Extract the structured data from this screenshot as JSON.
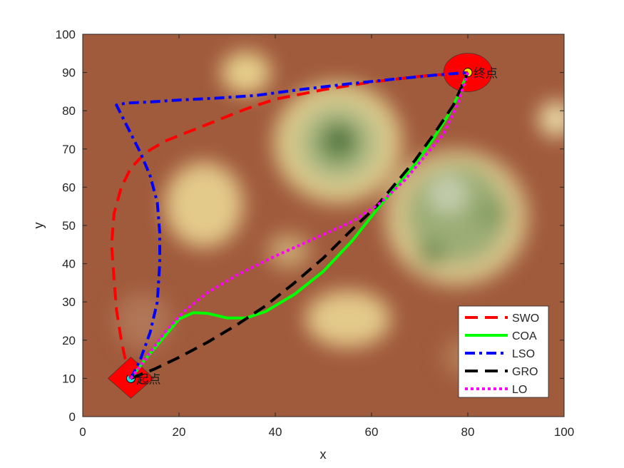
{
  "chart_data": {
    "type": "line",
    "title": "",
    "xlabel": "x",
    "ylabel": "y",
    "xlim": [
      0,
      100
    ],
    "ylim": [
      0,
      100
    ],
    "xticks": [
      0,
      20,
      40,
      60,
      80,
      100
    ],
    "yticks": [
      0,
      10,
      20,
      30,
      40,
      50,
      60,
      70,
      80,
      90,
      100
    ],
    "xtick_labels": [
      "0",
      "20",
      "40",
      "60",
      "80",
      "100"
    ],
    "ytick_labels": [
      "0",
      "10",
      "20",
      "30",
      "40",
      "50",
      "60",
      "70",
      "80",
      "90",
      "100"
    ],
    "grid": false,
    "legend_position": "bottom-right",
    "background": "terrain elevation map (brown lowlands, yellow/green peaks)",
    "start": {
      "x": 10,
      "y": 10,
      "label": "起点"
    },
    "goal": {
      "x": 80,
      "y": 90,
      "label": "终点"
    },
    "series": [
      {
        "name": "SWO",
        "color": "#ff0000",
        "style": "dashed",
        "points": [
          [
            10,
            10
          ],
          [
            9,
            14
          ],
          [
            8,
            20
          ],
          [
            7,
            28
          ],
          [
            6.5,
            36
          ],
          [
            6,
            45
          ],
          [
            6.5,
            53
          ],
          [
            8,
            60
          ],
          [
            10,
            65
          ],
          [
            13,
            69
          ],
          [
            17,
            72
          ],
          [
            22,
            74.5
          ],
          [
            28,
            77.5
          ],
          [
            34,
            80.5
          ],
          [
            40,
            83
          ],
          [
            50,
            85.5
          ],
          [
            60,
            87.5
          ],
          [
            70,
            89
          ],
          [
            80,
            90
          ]
        ]
      },
      {
        "name": "COA",
        "color": "#00ff00",
        "style": "solid",
        "points": [
          [
            10,
            10
          ],
          [
            13,
            15
          ],
          [
            17,
            21
          ],
          [
            20,
            25.5
          ],
          [
            23,
            27.2
          ],
          [
            26,
            27
          ],
          [
            30,
            25.8
          ],
          [
            34,
            25.8
          ],
          [
            38,
            27.5
          ],
          [
            44,
            32
          ],
          [
            50,
            38
          ],
          [
            56,
            46
          ],
          [
            61,
            54
          ],
          [
            65,
            60
          ],
          [
            69,
            66
          ],
          [
            73,
            73
          ],
          [
            76,
            79
          ],
          [
            78,
            84
          ],
          [
            80,
            90
          ]
        ]
      },
      {
        "name": "LSO",
        "color": "#0000ff",
        "style": "dashdot",
        "points": [
          [
            10,
            10
          ],
          [
            12,
            15
          ],
          [
            14,
            22
          ],
          [
            15.5,
            30
          ],
          [
            16,
            40
          ],
          [
            16,
            48
          ],
          [
            15.5,
            56
          ],
          [
            14,
            63
          ],
          [
            12,
            69
          ],
          [
            10,
            74
          ],
          [
            8,
            79
          ],
          [
            7,
            81.5
          ],
          [
            9,
            82
          ],
          [
            14,
            82.3
          ],
          [
            20,
            82.8
          ],
          [
            28,
            83.3
          ],
          [
            36,
            84
          ],
          [
            45,
            85.5
          ],
          [
            55,
            87
          ],
          [
            65,
            88.3
          ],
          [
            73,
            89.3
          ],
          [
            80,
            90
          ]
        ]
      },
      {
        "name": "GRO",
        "color": "#000000",
        "style": "dashed",
        "points": [
          [
            10,
            10
          ],
          [
            15,
            12.5
          ],
          [
            20,
            15.5
          ],
          [
            26,
            19.5
          ],
          [
            32,
            24
          ],
          [
            38,
            29
          ],
          [
            44,
            35
          ],
          [
            50,
            41.5
          ],
          [
            56,
            49
          ],
          [
            61,
            55
          ],
          [
            65,
            61
          ],
          [
            69,
            67
          ],
          [
            73,
            74
          ],
          [
            77,
            81.5
          ],
          [
            80,
            90
          ]
        ]
      },
      {
        "name": "LO",
        "color": "#ff00ff",
        "style": "dotted",
        "points": [
          [
            10,
            10
          ],
          [
            13,
            15
          ],
          [
            17,
            22
          ],
          [
            21,
            27.5
          ],
          [
            26,
            32.5
          ],
          [
            32,
            37
          ],
          [
            40,
            42
          ],
          [
            48,
            46.5
          ],
          [
            56,
            51
          ],
          [
            62,
            56
          ],
          [
            67,
            62
          ],
          [
            71,
            68
          ],
          [
            75,
            74
          ],
          [
            78,
            82
          ],
          [
            80,
            90
          ]
        ]
      }
    ]
  }
}
